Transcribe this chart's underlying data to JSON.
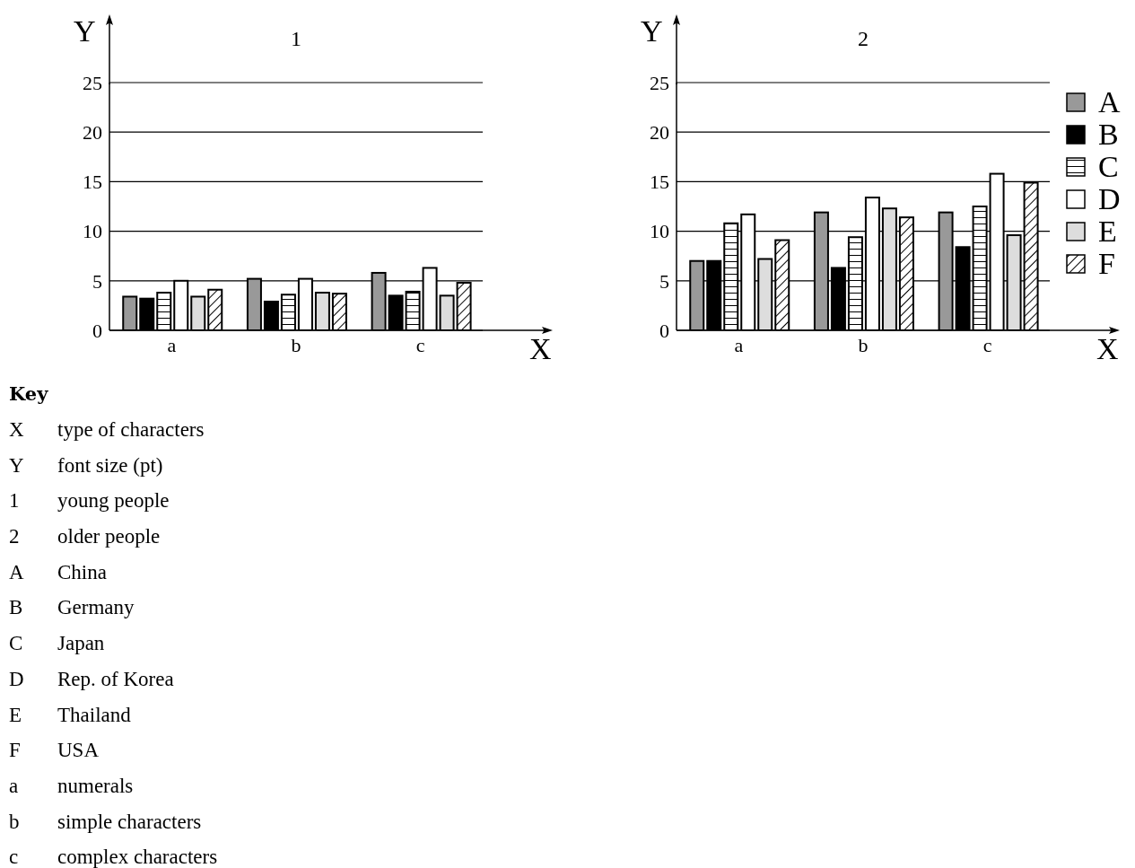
{
  "chart_data": [
    {
      "type": "bar",
      "title": "1",
      "xlabel": "X",
      "ylabel": "Y",
      "categories": [
        "a",
        "b",
        "c"
      ],
      "series": [
        {
          "color": "#999999",
          "values": [
            3.4,
            5.2,
            5.8
          ]
        },
        {
          "color": "#000000",
          "values": [
            3.2,
            2.9,
            3.5
          ]
        },
        {
          "color": "#ffffff",
          "values": [
            3.8,
            3.6,
            3.9
          ]
        },
        {
          "color": "#ffffff",
          "values": [
            5.0,
            5.2,
            6.3
          ]
        },
        {
          "color": "#dddddd",
          "values": [
            3.4,
            3.8,
            3.5
          ]
        },
        {
          "color": "#ffffff",
          "values": [
            4.1,
            3.7,
            4.8
          ]
        }
      ],
      "ylim": [
        0,
        25
      ],
      "yticks": [
        0,
        5,
        10,
        15,
        20,
        25
      ],
      "grid": "y",
      "legend": false,
      "annotations": [
        "Key",
        "X type of characters",
        "Y font size (pt)",
        "1 young people",
        "2 older people",
        "A China",
        "B Germany",
        "C Japan",
        "D Rep. of Korea",
        "E Thailand",
        "F USA",
        "a numerals",
        "b simple characters",
        "c complex characters"
      ]
    },
    {
      "type": "bar",
      "title": "2",
      "xlabel": "X",
      "ylabel": "Y",
      "categories": [
        "a",
        "b",
        "c"
      ],
      "series": [
        {
          "name": "A",
          "color": "#999999",
          "values": [
            7.0,
            11.9,
            11.9
          ]
        },
        {
          "name": "B",
          "color": "#000000",
          "values": [
            7.0,
            6.3,
            8.4
          ]
        },
        {
          "name": "C",
          "color": "#ffffff",
          "values": [
            10.8,
            9.4,
            12.5
          ]
        },
        {
          "name": "D",
          "color": "#ffffff",
          "values": [
            11.7,
            13.4,
            15.8
          ]
        },
        {
          "name": "E",
          "color": "#dddddd",
          "values": [
            7.2,
            12.3,
            9.6
          ]
        },
        {
          "name": "F",
          "color": "#ffffff",
          "values": [
            9.1,
            11.4,
            14.9
          ]
        }
      ],
      "ylim": [
        0,
        25
      ],
      "yticks": [
        0,
        5,
        10,
        15,
        20,
        25
      ],
      "grid": "y",
      "legend": "right"
    }
  ]
}
